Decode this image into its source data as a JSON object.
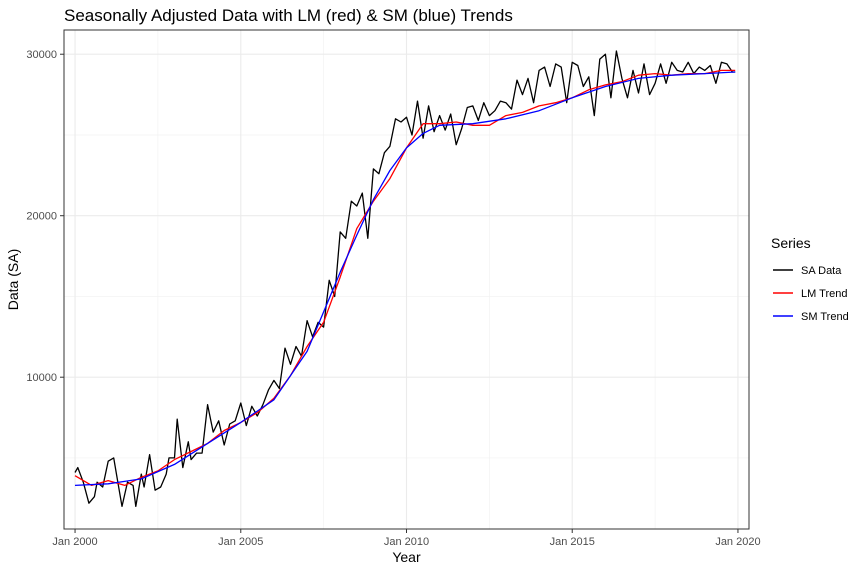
{
  "chart_data": {
    "type": "line",
    "title": "Seasonally Adjusted Data with LM (red) & SM (blue) Trends",
    "xlabel": "Year",
    "ylabel": "Data (SA)",
    "x_range": [
      "1999-09",
      "2020-05"
    ],
    "ylim": [
      600,
      31500
    ],
    "x_ticks": [
      {
        "label": "Jan 2000",
        "value": 2000.0
      },
      {
        "label": "Jan 2005",
        "value": 2005.0
      },
      {
        "label": "Jan 2010",
        "value": 2010.0
      },
      {
        "label": "Jan 2015",
        "value": 2015.0
      },
      {
        "label": "Jan 2020",
        "value": 2020.0
      }
    ],
    "y_ticks": [
      10000,
      20000,
      30000
    ],
    "grid": true,
    "legend": {
      "title": "Series",
      "position": "right",
      "entries": [
        {
          "name": "SA Data",
          "color": "#000000"
        },
        {
          "name": "LM Trend",
          "color": "#ff0000"
        },
        {
          "name": "SM Trend",
          "color": "#0000ff"
        }
      ]
    },
    "series": [
      {
        "name": "SA Data",
        "color": "#000000",
        "x": [
          "2000-01",
          "2000-02",
          "2000-04",
          "2000-06",
          "2000-08",
          "2000-09",
          "2000-11",
          "2001-01",
          "2001-03",
          "2001-05",
          "2001-06",
          "2001-08",
          "2001-10",
          "2001-11",
          "2002-01",
          "2002-02",
          "2002-04",
          "2002-06",
          "2002-08",
          "2002-10",
          "2002-11",
          "2003-01",
          "2003-02",
          "2003-04",
          "2003-06",
          "2003-07",
          "2003-09",
          "2003-11",
          "2004-01",
          "2004-03",
          "2004-05",
          "2004-07",
          "2004-09",
          "2004-11",
          "2005-01",
          "2005-03",
          "2005-05",
          "2005-07",
          "2005-09",
          "2005-11",
          "2006-01",
          "2006-03",
          "2006-05",
          "2006-07",
          "2006-09",
          "2006-11",
          "2007-01",
          "2007-03",
          "2007-05",
          "2007-07",
          "2007-09",
          "2007-11",
          "2008-01",
          "2008-03",
          "2008-05",
          "2008-07",
          "2008-09",
          "2008-11",
          "2009-01",
          "2009-03",
          "2009-05",
          "2009-07",
          "2009-09",
          "2009-11",
          "2010-01",
          "2010-03",
          "2010-05",
          "2010-07",
          "2010-09",
          "2010-11",
          "2011-01",
          "2011-03",
          "2011-05",
          "2011-07",
          "2011-09",
          "2011-11",
          "2012-01",
          "2012-03",
          "2012-05",
          "2012-07",
          "2012-09",
          "2012-11",
          "2013-01",
          "2013-03",
          "2013-05",
          "2013-07",
          "2013-09",
          "2013-11",
          "2014-01",
          "2014-03",
          "2014-05",
          "2014-07",
          "2014-09",
          "2014-11",
          "2015-01",
          "2015-03",
          "2015-05",
          "2015-07",
          "2015-09",
          "2015-11",
          "2016-01",
          "2016-03",
          "2016-05",
          "2016-07",
          "2016-09",
          "2016-11",
          "2017-01",
          "2017-03",
          "2017-05",
          "2017-07",
          "2017-09",
          "2017-11",
          "2018-01",
          "2018-03",
          "2018-05",
          "2018-07",
          "2018-09",
          "2018-11",
          "2019-01",
          "2019-03",
          "2019-05",
          "2019-07",
          "2019-09",
          "2019-11",
          "2019-12"
        ],
        "values": [
          4100,
          4400,
          3500,
          2200,
          2600,
          3500,
          3200,
          4800,
          5000,
          3000,
          2000,
          3500,
          3300,
          2000,
          4000,
          3200,
          5200,
          3000,
          3200,
          4000,
          5000,
          5000,
          7400,
          4400,
          6000,
          4900,
          5300,
          5300,
          8300,
          6600,
          7300,
          5800,
          7100,
          7300,
          8400,
          7000,
          8200,
          7600,
          8300,
          9200,
          9800,
          9300,
          11800,
          10800,
          11900,
          11300,
          13500,
          12500,
          13400,
          13100,
          16000,
          15000,
          19000,
          18600,
          20900,
          20600,
          21400,
          18600,
          22900,
          22600,
          23900,
          24300,
          26000,
          25800,
          26100,
          25000,
          27100,
          24800,
          26800,
          25200,
          26200,
          25300,
          26300,
          24400,
          25400,
          26700,
          26800,
          25900,
          27000,
          26200,
          26500,
          27100,
          27000,
          26600,
          28400,
          27500,
          28500,
          27000,
          29000,
          29200,
          28000,
          29400,
          29200,
          27000,
          29500,
          29300,
          28000,
          28600,
          26200,
          29700,
          30000,
          27300,
          30200,
          28500,
          27300,
          29000,
          27600,
          29400,
          27500,
          28200,
          29400,
          28200,
          29500,
          29000,
          28900,
          29500,
          28800,
          29200,
          29000,
          29300,
          28200,
          29500,
          29400,
          28900,
          28900
        ]
      },
      {
        "name": "LM Trend",
        "color": "#ff0000",
        "x": [
          "2000-01",
          "2000-07",
          "2001-01",
          "2001-07",
          "2002-01",
          "2002-07",
          "2003-01",
          "2003-07",
          "2004-01",
          "2004-07",
          "2005-01",
          "2005-07",
          "2006-01",
          "2006-07",
          "2007-01",
          "2007-07",
          "2008-01",
          "2008-07",
          "2009-01",
          "2009-07",
          "2010-01",
          "2010-07",
          "2011-01",
          "2011-07",
          "2012-01",
          "2012-07",
          "2013-01",
          "2013-07",
          "2014-01",
          "2014-07",
          "2015-01",
          "2015-07",
          "2016-01",
          "2016-07",
          "2017-01",
          "2017-07",
          "2018-01",
          "2018-07",
          "2019-01",
          "2019-07",
          "2019-12"
        ],
        "values": [
          3900,
          3300,
          3600,
          3300,
          3800,
          4200,
          4900,
          5400,
          5900,
          6700,
          7200,
          7800,
          8700,
          10100,
          11900,
          13400,
          16200,
          19200,
          20900,
          22300,
          24200,
          25700,
          25700,
          25800,
          25600,
          25600,
          26200,
          26400,
          26800,
          27000,
          27300,
          27800,
          28100,
          28300,
          28700,
          28800,
          28700,
          28800,
          28800,
          29000,
          29000
        ]
      },
      {
        "name": "SM Trend",
        "color": "#0000ff",
        "x": [
          "2000-01",
          "2001-01",
          "2002-01",
          "2003-01",
          "2004-01",
          "2005-01",
          "2006-01",
          "2007-01",
          "2008-01",
          "2008-07",
          "2009-01",
          "2009-07",
          "2010-01",
          "2010-07",
          "2011-01",
          "2012-01",
          "2013-01",
          "2014-01",
          "2015-01",
          "2016-01",
          "2017-01",
          "2018-01",
          "2019-01",
          "2019-12"
        ],
        "values": [
          3300,
          3400,
          3700,
          4600,
          5900,
          7200,
          8600,
          11600,
          16500,
          18800,
          21000,
          22800,
          24200,
          25100,
          25600,
          25700,
          26000,
          26500,
          27300,
          28000,
          28500,
          28700,
          28800,
          28900
        ]
      }
    ]
  }
}
